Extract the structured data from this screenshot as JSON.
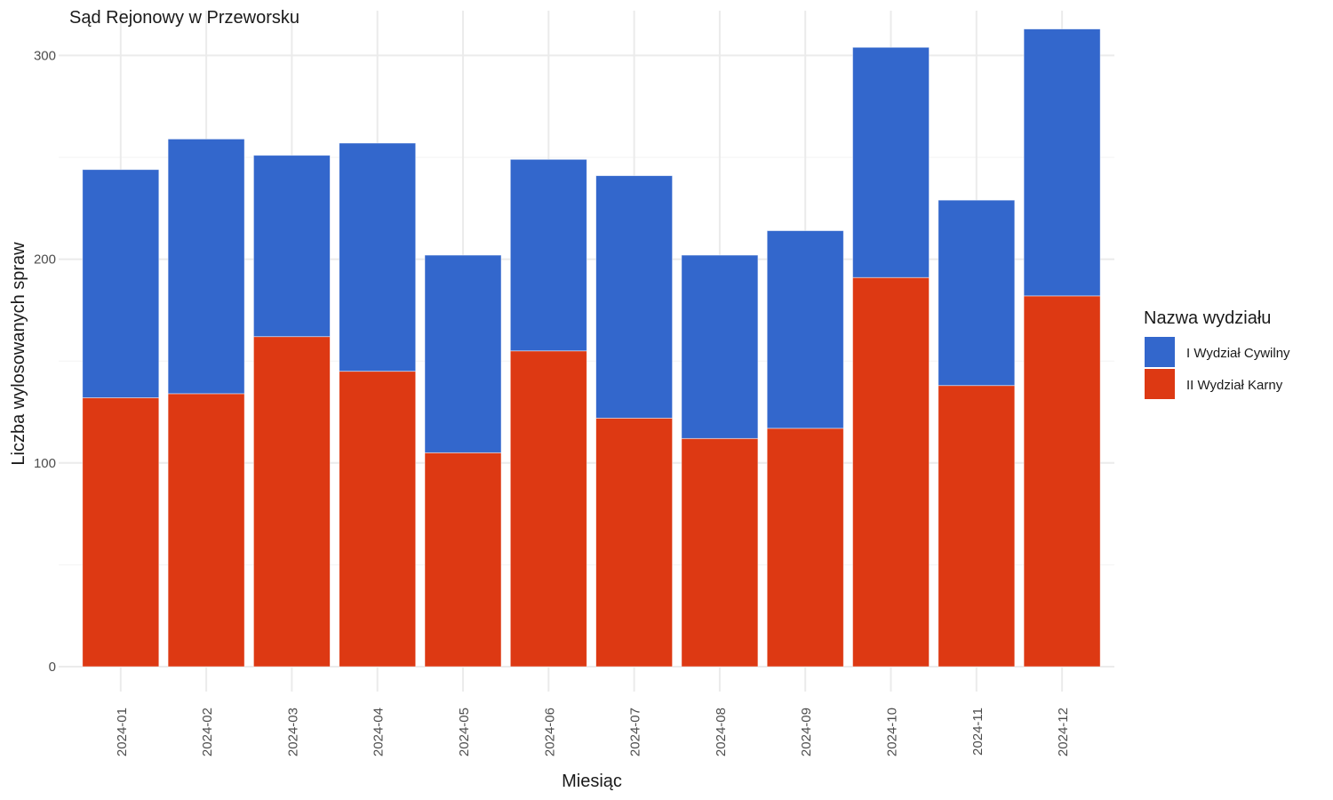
{
  "chart_data": {
    "type": "bar",
    "stacked": true,
    "title": "Sąd Rejonowy w Przeworsku",
    "xlabel": "Miesiąc",
    "ylabel": "Liczba wylosowanych spraw",
    "ylim": [
      0,
      322
    ],
    "yticks": [
      0,
      100,
      200,
      300
    ],
    "grid": true,
    "categories": [
      "2024-01",
      "2024-02",
      "2024-03",
      "2024-04",
      "2024-05",
      "2024-06",
      "2024-07",
      "2024-08",
      "2024-09",
      "2024-10",
      "2024-11",
      "2024-12"
    ],
    "series": [
      {
        "name": "II Wydział Karny",
        "color": "#dd3913",
        "values": [
          132,
          134,
          162,
          145,
          105,
          155,
          122,
          112,
          117,
          191,
          138,
          182
        ]
      },
      {
        "name": "I Wydział Cywilny",
        "color": "#3367cc",
        "values": [
          112,
          125,
          89,
          112,
          97,
          94,
          119,
          90,
          97,
          113,
          91,
          131
        ]
      }
    ],
    "legend": {
      "title": "Nazwa wydziału",
      "position": "right",
      "items": [
        {
          "label": "I Wydział Cywilny",
          "color": "#3367cc"
        },
        {
          "label": "II Wydział Karny",
          "color": "#dd3913"
        }
      ]
    }
  }
}
